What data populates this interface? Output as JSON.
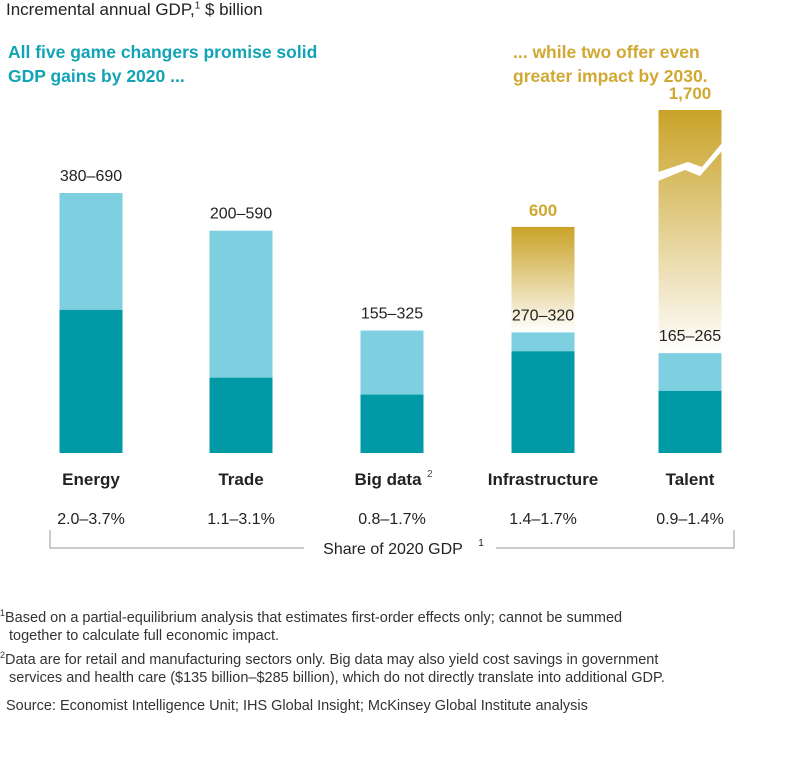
{
  "subtitle": {
    "text": "Incremental annual GDP,",
    "note": "1",
    "unit": " $ billion"
  },
  "heading_left": {
    "line1": "All five game changers promise solid",
    "line2": "GDP gains by 2020 ..."
  },
  "heading_right": {
    "line1": "... while two offer even",
    "line2": "greater impact by 2030."
  },
  "colors": {
    "dark": "#009aa6",
    "light": "#7ecfe0",
    "gold": "#c9a227",
    "gold_text": "#d0a832",
    "teal_text": "#12a4b4"
  },
  "chart_data": {
    "type": "bar",
    "title": "Incremental annual GDP, $ billion",
    "categories": [
      "Energy",
      "Trade",
      "Big data",
      "Infrastructure",
      "Talent"
    ],
    "category_notes": [
      "",
      "",
      "2",
      "",
      ""
    ],
    "range_2020": [
      {
        "low": 380,
        "high": 690,
        "label": "380–690"
      },
      {
        "low": 200,
        "high": 590,
        "label": "200–590"
      },
      {
        "low": 155,
        "high": 325,
        "label": "155–325"
      },
      {
        "low": 270,
        "high": 320,
        "label": "270–320"
      },
      {
        "low": 165,
        "high": 265,
        "label": "165–265"
      }
    ],
    "impact_2030": [
      null,
      null,
      null,
      {
        "value": 600,
        "label": "600"
      },
      {
        "value": 1700,
        "label": "1,700",
        "axis_break": true
      }
    ],
    "share_of_2020_gdp": [
      "2.0–3.7%",
      "1.1–3.1%",
      "0.8–1.7%",
      "1.4–1.7%",
      "0.9–1.4%"
    ],
    "share_axis_label": "Share of 2020 GDP",
    "share_axis_note": "1",
    "ylim": [
      0,
      690
    ]
  },
  "footnotes": {
    "fn1_mark": "1",
    "fn1_line1": "Based on a partial-equilibrium analysis that estimates first-order effects only; cannot be summed",
    "fn1_line2": "together to calculate full economic impact.",
    "fn2_mark": "2",
    "fn2_line1": "Data are for retail and manufacturing sectors only. Big data may also yield cost savings in government",
    "fn2_line2": "services and health care ($135 billion–$285 billion), which do not directly translate into additional GDP."
  },
  "source": "Source: Economist Intelligence Unit; IHS Global Insight; McKinsey Global Institute analysis"
}
